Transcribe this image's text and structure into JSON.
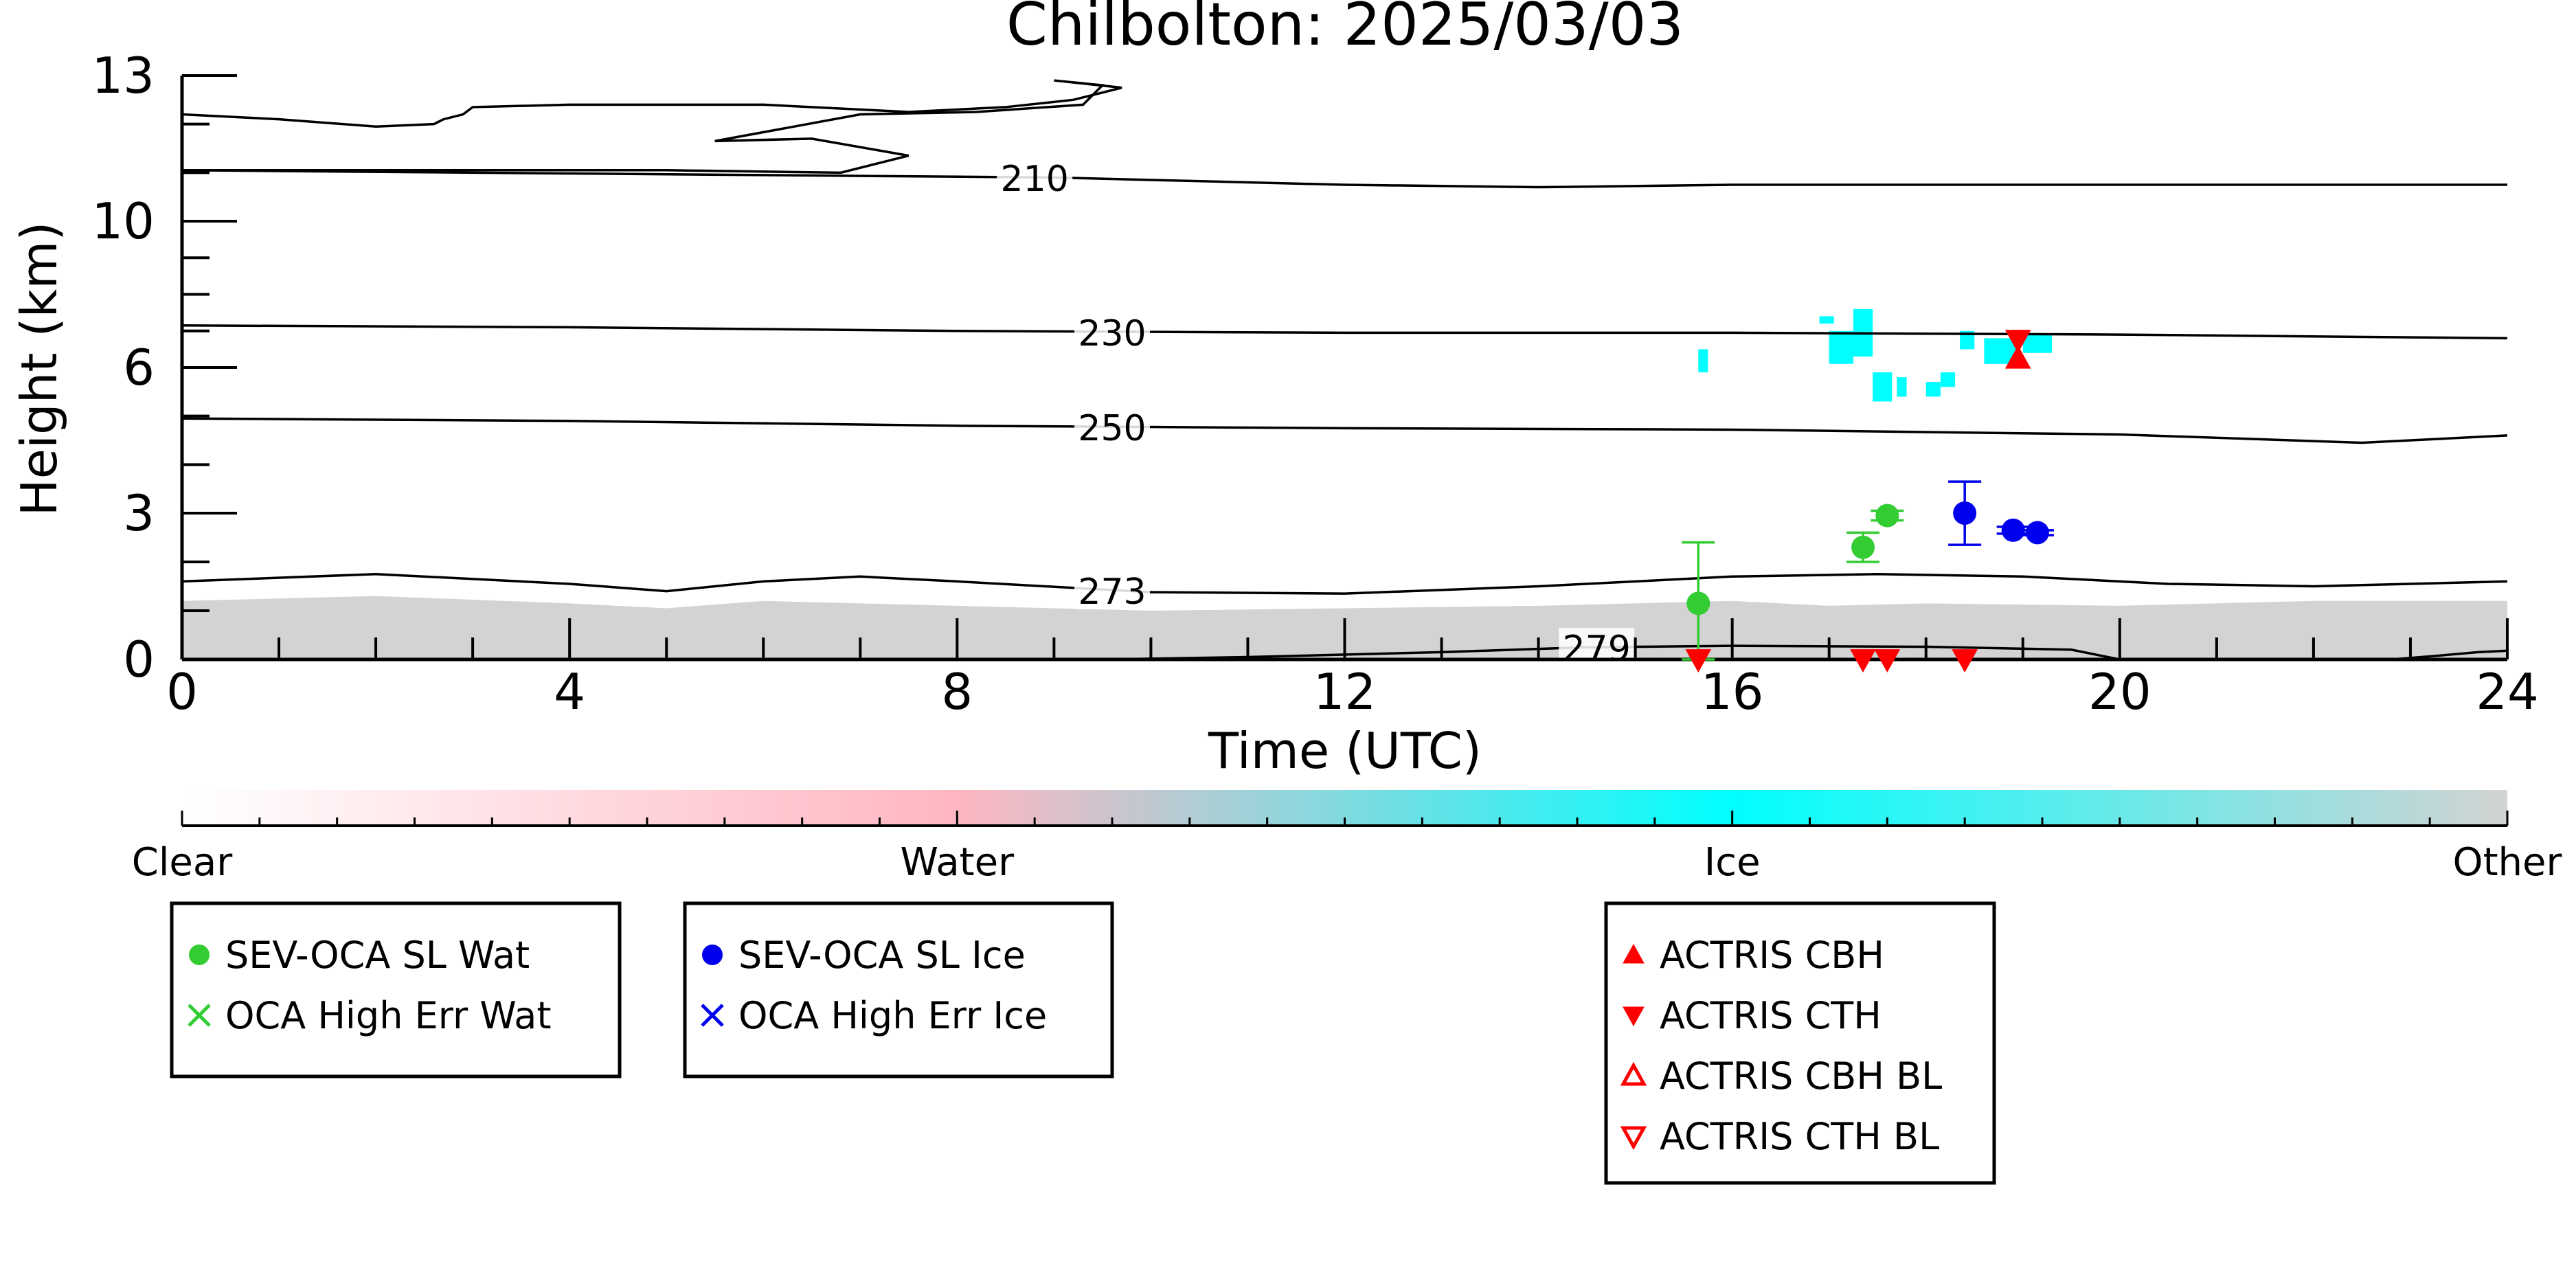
{
  "chart_data": {
    "type": "scatter",
    "title": "Chilbolton: 2025/03/03",
    "xlabel": "Time (UTC)",
    "ylabel": "Height (km)",
    "xlim": [
      0,
      24
    ],
    "ylim": [
      0,
      12
    ],
    "x_ticks": [
      0,
      4,
      8,
      12,
      16,
      20,
      24
    ],
    "y_ticks": [
      0,
      3,
      6,
      10,
      13
    ],
    "grid": false,
    "background_mask": {
      "category": "Other",
      "color": "#d3d3d3",
      "top_km": [
        [
          0,
          1.2
        ],
        [
          2,
          1.3
        ],
        [
          4,
          1.15
        ],
        [
          5,
          1.05
        ],
        [
          6,
          1.2
        ],
        [
          8,
          1.1
        ],
        [
          10,
          1.0
        ],
        [
          12,
          1.05
        ],
        [
          14,
          1.1
        ],
        [
          16,
          1.2
        ],
        [
          17,
          1.1
        ],
        [
          18,
          1.15
        ],
        [
          20,
          1.1
        ],
        [
          22,
          1.2
        ],
        [
          24,
          1.2
        ]
      ]
    },
    "ice_mask": {
      "category": "Ice",
      "color": "#00ffff",
      "patches": [
        {
          "x": [
            15.65,
            15.75
          ],
          "y": [
            5.9,
            6.5
          ]
        },
        {
          "x": [
            16.9,
            17.05
          ],
          "y": [
            7.2,
            7.4
          ]
        },
        {
          "x": [
            17.0,
            17.25
          ],
          "y": [
            6.1,
            7.0
          ]
        },
        {
          "x": [
            17.25,
            17.45
          ],
          "y": [
            6.3,
            7.6
          ]
        },
        {
          "x": [
            17.45,
            17.65
          ],
          "y": [
            5.3,
            5.9
          ]
        },
        {
          "x": [
            17.7,
            17.8
          ],
          "y": [
            5.4,
            5.8
          ]
        },
        {
          "x": [
            18.0,
            18.15
          ],
          "y": [
            5.4,
            5.7
          ]
        },
        {
          "x": [
            18.15,
            18.3
          ],
          "y": [
            5.6,
            5.9
          ]
        },
        {
          "x": [
            18.35,
            18.5
          ],
          "y": [
            6.5,
            7.0
          ]
        },
        {
          "x": [
            18.6,
            18.95
          ],
          "y": [
            6.1,
            6.8
          ]
        },
        {
          "x": [
            19.0,
            19.3
          ],
          "y": [
            6.4,
            6.9
          ]
        }
      ]
    },
    "contours": [
      {
        "label": "210",
        "label_x": 8.8,
        "points": [
          [
            0,
            11.05
          ],
          [
            3,
            11.0
          ],
          [
            6,
            10.95
          ],
          [
            9,
            10.9
          ],
          [
            12,
            10.75
          ],
          [
            14,
            10.7
          ],
          [
            16,
            10.75
          ],
          [
            20,
            10.75
          ],
          [
            24,
            10.75
          ]
        ]
      },
      {
        "label": "230",
        "label_x": 9.6,
        "points": [
          [
            0,
            7.15
          ],
          [
            4,
            7.1
          ],
          [
            8,
            7.0
          ],
          [
            12,
            6.95
          ],
          [
            16,
            6.95
          ],
          [
            20,
            6.9
          ],
          [
            24,
            6.8
          ]
        ]
      },
      {
        "label": "250",
        "label_x": 9.6,
        "points": [
          [
            0,
            4.95
          ],
          [
            4,
            4.9
          ],
          [
            8,
            4.8
          ],
          [
            12,
            4.75
          ],
          [
            16,
            4.72
          ],
          [
            20,
            4.62
          ],
          [
            22.5,
            4.45
          ],
          [
            24,
            4.6
          ]
        ]
      },
      {
        "label": "273",
        "label_x": 9.6,
        "points": [
          [
            0,
            1.6
          ],
          [
            2,
            1.75
          ],
          [
            4,
            1.55
          ],
          [
            5,
            1.4
          ],
          [
            6,
            1.6
          ],
          [
            7,
            1.7
          ],
          [
            8,
            1.6
          ],
          [
            10,
            1.38
          ],
          [
            12,
            1.35
          ],
          [
            14,
            1.5
          ],
          [
            16,
            1.7
          ],
          [
            17.5,
            1.75
          ],
          [
            19,
            1.7
          ],
          [
            20.5,
            1.55
          ],
          [
            22,
            1.5
          ],
          [
            24,
            1.6
          ]
        ]
      },
      {
        "label": "279",
        "label_x": 14.6,
        "points": [
          [
            9.5,
            0.0
          ],
          [
            11,
            0.05
          ],
          [
            13,
            0.15
          ],
          [
            14.5,
            0.25
          ],
          [
            16,
            0.28
          ],
          [
            18,
            0.26
          ],
          [
            19.5,
            0.2
          ],
          [
            20,
            0.0
          ]
        ]
      },
      {
        "label": "",
        "label_x": null,
        "points": [
          [
            22.8,
            0.0
          ],
          [
            23.3,
            0.08
          ],
          [
            23.7,
            0.15
          ],
          [
            24,
            0.18
          ]
        ]
      },
      {
        "label": "",
        "label_x": null,
        "closed": true,
        "points": [
          [
            0,
            12.2
          ],
          [
            1,
            12.1
          ],
          [
            2,
            11.95
          ],
          [
            2.6,
            12.0
          ],
          [
            2.7,
            12.1
          ],
          [
            2.9,
            12.2
          ],
          [
            3.0,
            12.35
          ],
          [
            4,
            12.4
          ],
          [
            6,
            12.4
          ],
          [
            7.5,
            12.25
          ],
          [
            8,
            12.3
          ],
          [
            8.5,
            12.35
          ],
          [
            9.2,
            12.5
          ],
          [
            9.4,
            12.6
          ],
          [
            9.7,
            12.75
          ],
          [
            9.0,
            12.9
          ],
          [
            9.5,
            12.8
          ],
          [
            9.3,
            12.4
          ],
          [
            8.2,
            12.25
          ],
          [
            7.0,
            12.2
          ],
          [
            5.5,
            11.65
          ],
          [
            6.5,
            11.7
          ],
          [
            7.5,
            11.35
          ],
          [
            6.8,
            11.0
          ],
          [
            5.0,
            11.05
          ],
          [
            3.0,
            11.05
          ],
          [
            0,
            11.05
          ]
        ]
      }
    ],
    "series": [
      {
        "name": "SEV-OCA SL Wat",
        "color": "#33cc33",
        "marker": "circle",
        "points": [
          {
            "x": 15.65,
            "y": 1.15,
            "err_low": 0.0,
            "err_high": 2.4
          },
          {
            "x": 17.35,
            "y": 2.3,
            "err_low": 2.0,
            "err_high": 2.6
          },
          {
            "x": 17.6,
            "y": 2.95,
            "err_low": 2.85,
            "err_high": 3.05
          }
        ]
      },
      {
        "name": "OCA High Err Wat",
        "color": "#33cc33",
        "marker": "x",
        "points": []
      },
      {
        "name": "SEV-OCA SL Ice",
        "color": "#0000ee",
        "marker": "circle",
        "points": [
          {
            "x": 18.4,
            "y": 3.0,
            "err_low": 2.35,
            "err_high": 3.65
          },
          {
            "x": 18.9,
            "y": 2.65,
            "err_low": 2.58,
            "err_high": 2.72
          },
          {
            "x": 19.15,
            "y": 2.6,
            "err_low": 2.55,
            "err_high": 2.65
          }
        ]
      },
      {
        "name": "OCA High Err Ice",
        "color": "#0000ee",
        "marker": "x",
        "points": []
      },
      {
        "name": "ACTRIS CBH",
        "color": "#ff0000",
        "marker": "triangle-up",
        "points": [
          {
            "x": 18.95,
            "y": 6.25
          }
        ]
      },
      {
        "name": "ACTRIS CTH",
        "color": "#ff0000",
        "marker": "triangle-down",
        "points": [
          {
            "x": 18.95,
            "y": 6.75
          },
          {
            "x": 15.65,
            "y": 0.0
          },
          {
            "x": 17.35,
            "y": 0.0
          },
          {
            "x": 17.6,
            "y": 0.0
          },
          {
            "x": 18.4,
            "y": 0.0
          }
        ]
      },
      {
        "name": "ACTRIS CBH BL",
        "color": "#ff0000",
        "marker": "triangle-up-open",
        "points": []
      },
      {
        "name": "ACTRIS CTH BL",
        "color": "#ff0000",
        "marker": "triangle-down-open",
        "points": []
      }
    ],
    "colorbar": {
      "labels": [
        "Clear",
        "Water",
        "Ice",
        "Other"
      ],
      "colors": [
        "#ffffff",
        "#ffb6c1",
        "#00ffff",
        "#d3d3d3"
      ]
    }
  },
  "legend_groups": [
    {
      "entries": [
        {
          "label": "SEV-OCA SL Wat",
          "marker": "circle",
          "color": "#33cc33"
        },
        {
          "label": "OCA High Err Wat",
          "marker": "x",
          "color": "#33cc33"
        }
      ]
    },
    {
      "entries": [
        {
          "label": "SEV-OCA SL Ice",
          "marker": "circle",
          "color": "#0000ee"
        },
        {
          "label": "OCA High Err Ice",
          "marker": "x",
          "color": "#0000ee"
        }
      ]
    },
    {
      "entries": [
        {
          "label": "ACTRIS CBH",
          "marker": "triangle-up",
          "color": "#ff0000"
        },
        {
          "label": "ACTRIS CTH",
          "marker": "triangle-down",
          "color": "#ff0000"
        },
        {
          "label": "ACTRIS CBH BL",
          "marker": "triangle-up-open",
          "color": "#ff0000"
        },
        {
          "label": "ACTRIS CTH BL",
          "marker": "triangle-down-open",
          "color": "#ff0000"
        }
      ]
    }
  ]
}
